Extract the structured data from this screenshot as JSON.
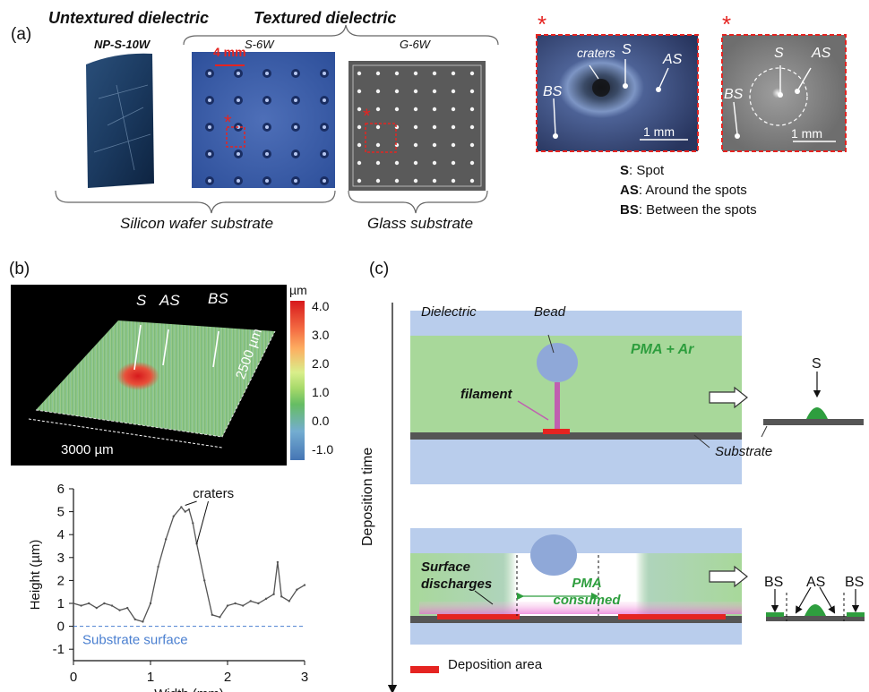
{
  "panel_a": {
    "label": "(a)",
    "untextured_title": "Untextured dielectric",
    "textured_title": "Textured dielectric",
    "samples": [
      "NP-S-10W",
      "S-6W",
      "G-6W"
    ],
    "scale_4mm": "4 mm",
    "star": "*",
    "silicon_label": "Silicon wafer substrate",
    "glass_label": "Glass substrate",
    "zoom1": {
      "craters": "craters",
      "s": "S",
      "as": "AS",
      "bs": "BS",
      "scale": "1 mm"
    },
    "zoom2": {
      "s": "S",
      "as": "AS",
      "bs": "BS",
      "scale": "1 mm"
    },
    "legend": [
      {
        "key": "S",
        "text": ": Spot"
      },
      {
        "key": "AS",
        "text": ": Around the spots"
      },
      {
        "key": "BS",
        "text": ": Between the spots"
      }
    ]
  },
  "panel_b": {
    "label": "(b)",
    "map": {
      "s": "S",
      "as": "AS",
      "bs": "BS",
      "x_extent": "3000 µm",
      "y_extent": "2500 µm",
      "unit": "µm",
      "colorbar_ticks": [
        "4.0",
        "3.0",
        "2.0",
        "1.0",
        "0.0",
        "-1.0"
      ],
      "colorbar_colors": [
        "#d7191c",
        "#fdae61",
        "#a6d96a",
        "#1a9641",
        "#74add1",
        "#4575b4"
      ]
    },
    "profile_annotation": "craters",
    "substrate_label": "Substrate surface"
  },
  "panel_c": {
    "label": "(c)",
    "time_label": "Deposition time",
    "dielectric": "Dielectric",
    "bead": "Bead",
    "pma_ar": "PMA + Ar",
    "filament": "filament",
    "substrate": "Substrate",
    "result_s": "S",
    "surface_discharges": "Surface discharges",
    "pma_consumed": "PMA consumed",
    "result_bs_left": "BS",
    "result_as": "AS",
    "result_bs_right": "BS",
    "deposition_area": "Deposition area",
    "colors": {
      "dielectric": "#b9cdec",
      "gas": "#a8d89a",
      "deposit": "#e52421",
      "substrate": "#555555",
      "pma_text": "#2e9e3e"
    }
  },
  "chart_data": {
    "type": "line",
    "xlabel": "Width (mm)",
    "ylabel": "Height (µm)",
    "xlim": [
      0,
      3
    ],
    "ylim": [
      -1.5,
      6
    ],
    "xticks": [
      "0",
      "1",
      "2",
      "3"
    ],
    "yticks": [
      "6",
      "5",
      "4",
      "3",
      "2",
      "1",
      "0",
      "-1"
    ],
    "series": [
      {
        "x": [
          0.0,
          0.1,
          0.2,
          0.3,
          0.4,
          0.5,
          0.6,
          0.7,
          0.8,
          0.9,
          1.0,
          1.1,
          1.2,
          1.3,
          1.4,
          1.45,
          1.5,
          1.55,
          1.6,
          1.7,
          1.8,
          1.9,
          2.0,
          2.1,
          2.2,
          2.3,
          2.4,
          2.5,
          2.6,
          2.65,
          2.7,
          2.8,
          2.9,
          3.0
        ],
        "y": [
          1.0,
          0.9,
          1.0,
          0.8,
          1.0,
          0.9,
          0.7,
          0.8,
          0.3,
          0.2,
          1.0,
          2.6,
          3.8,
          4.8,
          5.2,
          5.0,
          5.1,
          4.5,
          3.6,
          2.0,
          0.5,
          0.4,
          0.9,
          1.0,
          0.9,
          1.1,
          1.0,
          1.2,
          1.4,
          2.8,
          1.3,
          1.1,
          1.6,
          1.8
        ]
      }
    ]
  }
}
